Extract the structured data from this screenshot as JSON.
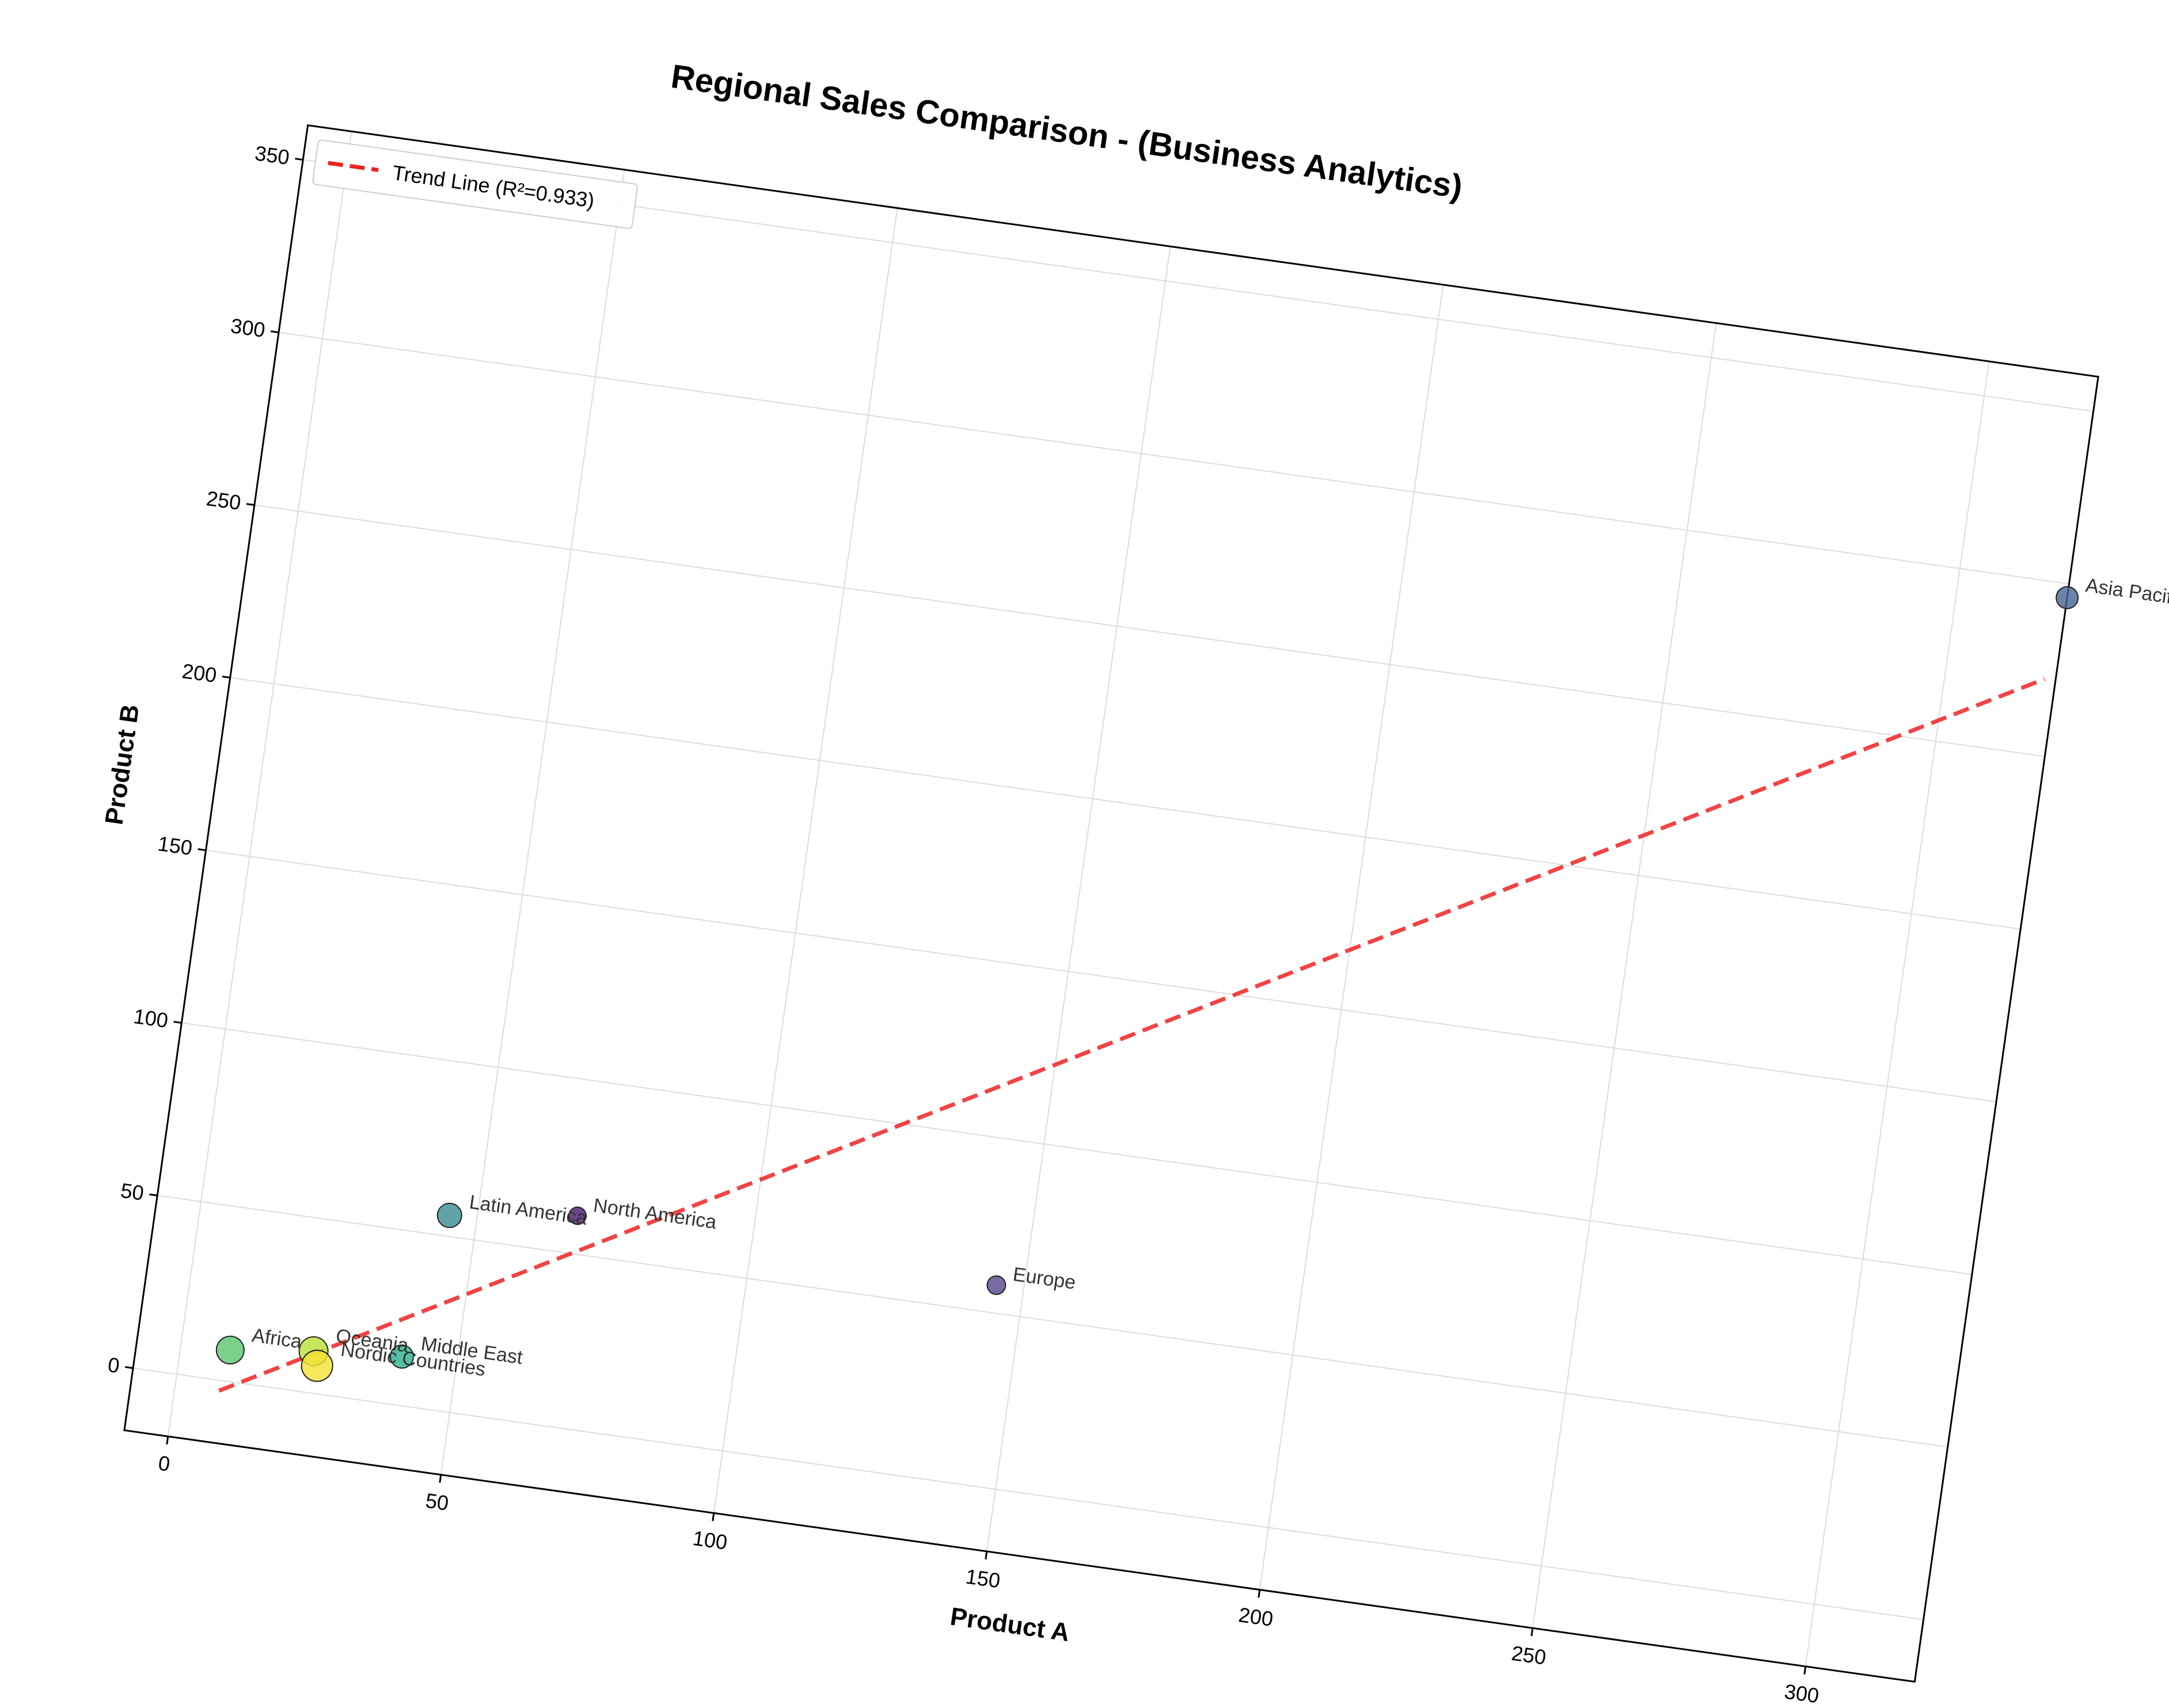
{
  "chart_data": {
    "type": "scatter",
    "title": "Regional Sales Comparison - (Business Analytics)",
    "xlabel": "Product A",
    "ylabel": "Product B",
    "xlim": [
      -8,
      320
    ],
    "ylim": [
      -18,
      360
    ],
    "xticks": [
      0,
      50,
      100,
      150,
      200,
      250,
      300
    ],
    "yticks": [
      0,
      50,
      100,
      150,
      200,
      250,
      300,
      350
    ],
    "grid": true,
    "rotation_deg": 8,
    "legend": {
      "placement": "top-left",
      "entries": [
        {
          "label": "Trend Line (R²=0.933)",
          "color": "#ee2222",
          "style": "dashed"
        }
      ]
    },
    "trend_line": {
      "x": [
        8,
        318
      ],
      "y": [
        -3,
        272
      ],
      "color": "#ee2222"
    },
    "points": [
      {
        "label": "North America",
        "x": 68,
        "y": 61,
        "color": "#4b1d6e"
      },
      {
        "label": "Europe",
        "x": 145,
        "y": 58,
        "color": "#5a4a8e"
      },
      {
        "label": "Asia Pacific",
        "x": 320,
        "y": 296,
        "color": "#4a6796"
      },
      {
        "label": "Latin America",
        "x": 45,
        "y": 56,
        "color": "#3f8f96"
      },
      {
        "label": "Middle East",
        "x": 40,
        "y": 14,
        "color": "#2db38f"
      },
      {
        "label": "Africa",
        "x": 9,
        "y": 9,
        "color": "#5ec673"
      },
      {
        "label": "Oceania",
        "x": 24,
        "y": 12,
        "color": "#bce03a"
      },
      {
        "label": "Nordic Countries",
        "x": 25,
        "y": 8,
        "color": "#f4e336"
      }
    ]
  }
}
